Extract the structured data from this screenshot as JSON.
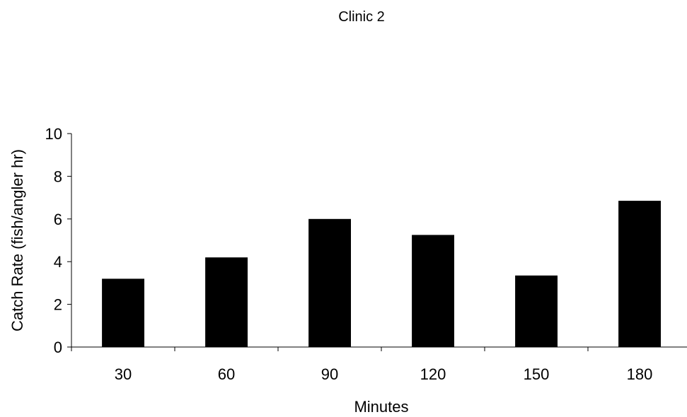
{
  "chart_data": {
    "type": "bar",
    "title": "Clinic 2",
    "xlabel": "Minutes",
    "ylabel": "Catch Rate (fish/angler hr)",
    "categories": [
      "30",
      "60",
      "90",
      "120",
      "150",
      "180"
    ],
    "values": [
      3.2,
      4.2,
      6.0,
      5.25,
      3.35,
      6.85
    ],
    "ylim": [
      0,
      10
    ],
    "yticks": [
      "0",
      "2",
      "4",
      "6",
      "8",
      "10"
    ],
    "bar_color": "#000000",
    "grid": false,
    "legend": "none"
  }
}
